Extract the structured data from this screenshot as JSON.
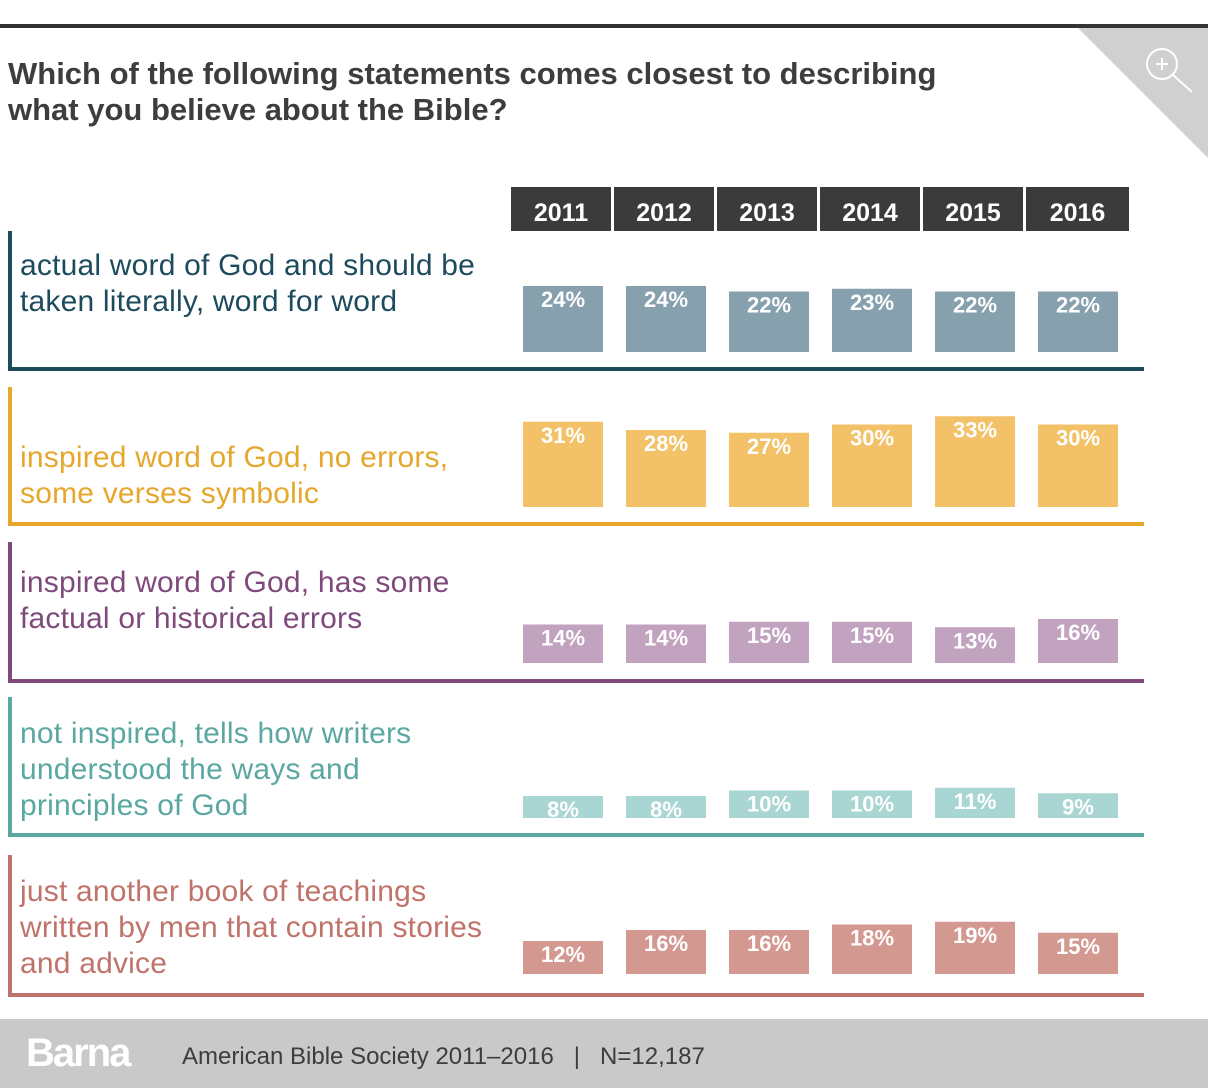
{
  "title": "Which of the following statements comes closest to describing what you believe about the Bible?",
  "chart_data": {
    "type": "bar",
    "title": "Which of the following statements comes closest to describing what you believe about the Bible?",
    "categories": [
      "2011",
      "2012",
      "2013",
      "2014",
      "2015",
      "2016"
    ],
    "series": [
      {
        "name": "actual word of God and should be taken literally, word for word",
        "color": "#87a0ae",
        "values": [
          24,
          24,
          22,
          23,
          22,
          22
        ],
        "labels": [
          "24%",
          "24%",
          "22%",
          "23%",
          "22%",
          "22%"
        ],
        "line_color": "#1d4b5e",
        "label_color": "#1d4b5e"
      },
      {
        "name": "inspired word of God, no errors, some verses symbolic",
        "color": "#f2c168",
        "values": [
          31,
          28,
          27,
          30,
          33,
          30
        ],
        "labels": [
          "31%",
          "28%",
          "27%",
          "30%",
          "33%",
          "30%"
        ],
        "line_color": "#e7a62c",
        "label_color": "#e7a62c"
      },
      {
        "name": "inspired word of God, has some factual or historical errors",
        "color": "#c1a2bf",
        "values": [
          14,
          14,
          15,
          15,
          13,
          16
        ],
        "labels": [
          "14%",
          "14%",
          "15%",
          "15%",
          "13%",
          "16%"
        ],
        "line_color": "#7f4a7b",
        "label_color": "#7f4a7b"
      },
      {
        "name": "not inspired, tells how writers understood the ways and principles of God",
        "color": "#a9d6d2",
        "values": [
          8,
          8,
          10,
          10,
          11,
          9
        ],
        "labels": [
          "8%",
          "8%",
          "10%",
          "10%",
          "11%",
          "9%"
        ],
        "line_color": "#5aa8a1",
        "label_color": "#5aa8a1"
      },
      {
        "name": "just another book of teachings written by men that contain stories and advice",
        "color": "#d39890",
        "values": [
          12,
          16,
          16,
          18,
          19,
          15
        ],
        "labels": [
          "12%",
          "16%",
          "16%",
          "18%",
          "19%",
          "15%"
        ],
        "line_color": "#c0736a",
        "label_color": "#c0736a"
      }
    ]
  },
  "footer": {
    "logo": "Barna",
    "source": "American Bible Society 2011–2016",
    "separator": "|",
    "sample": "N=12,187"
  },
  "colors": {
    "header_bg": "#3b3b3b",
    "footer_bg": "#c9c9c9",
    "title": "#3d3d3d"
  }
}
